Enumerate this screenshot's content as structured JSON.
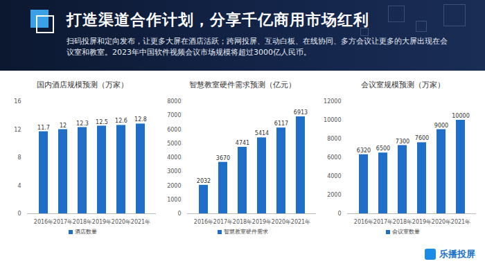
{
  "header": {
    "title": "打造渠道合作计划，分享千亿商用市场红利",
    "subtitle": "扫码投屏和定向发布，让更多大屏在酒店活跃；跨网投屏、互动白板、在线协同、多方会议让更多的大屏出现在会议室和教室。2023年中国软件视频会议市场规模将超过3000亿人民币。"
  },
  "logo": "乐播投屏",
  "chart_data": [
    {
      "type": "bar",
      "title": "国内酒店规模预测（万家）",
      "categories": [
        "2016年",
        "2017年",
        "2018年",
        "2019年",
        "2020年",
        "2021年"
      ],
      "series": [
        {
          "name": "酒店数量",
          "color": "#1f6fc8",
          "values": [
            11.7,
            12,
            12.3,
            12.5,
            12.6,
            12.8
          ]
        }
      ],
      "ylim": [
        0,
        16
      ],
      "yticks": [
        0,
        4,
        8,
        12,
        16
      ],
      "grid": false,
      "data_labels": true,
      "legend": "bottom"
    },
    {
      "type": "bar",
      "title": "智慧教室硬件需求预测（亿元）",
      "categories": [
        "2016年",
        "2017年",
        "2018年",
        "2019年",
        "2020年",
        "2021年"
      ],
      "series": [
        {
          "name": "智慧教室硬件需求",
          "color": "#1f6fc8",
          "values": [
            2032,
            3670,
            4741,
            5414,
            6117,
            6913
          ]
        }
      ],
      "ylim": [
        0,
        8000
      ],
      "yticks": [
        0,
        1000,
        2000,
        3000,
        4000,
        5000,
        6000,
        7000,
        8000
      ],
      "grid": false,
      "data_labels": true,
      "legend": "bottom"
    },
    {
      "type": "bar",
      "title": "会议室规模预测（万家）",
      "categories": [
        "2016年",
        "2017年",
        "2018年",
        "2019年",
        "2020年",
        "2021年"
      ],
      "series": [
        {
          "name": "会议室数量",
          "color": "#1f6fc8",
          "values": [
            6320,
            6500,
            7300,
            7600,
            9000,
            10000
          ]
        }
      ],
      "ylim": [
        0,
        12000
      ],
      "yticks": [
        0,
        2000,
        4000,
        6000,
        8000,
        10000,
        12000
      ],
      "grid": false,
      "data_labels": true,
      "legend": "bottom"
    }
  ]
}
